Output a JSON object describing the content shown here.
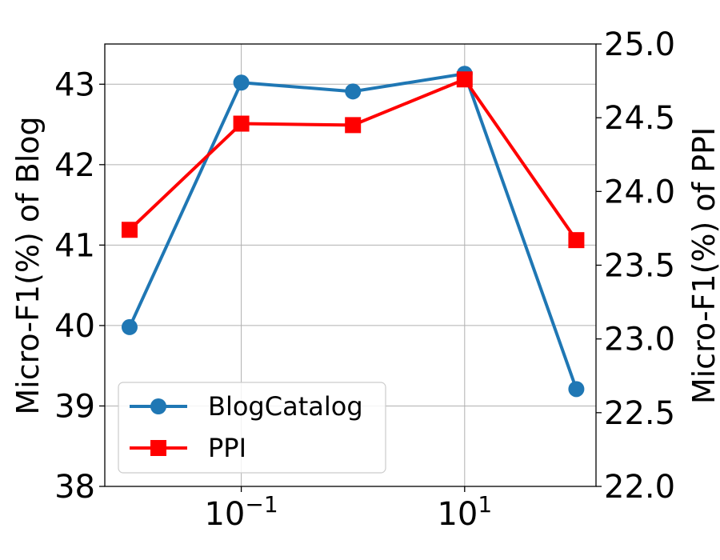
{
  "chart_data": {
    "type": "line",
    "x_scale": "log",
    "x": [
      0.01,
      0.1,
      1,
      10,
      100
    ],
    "x_ticks": [
      {
        "value": 0.1,
        "base": "10",
        "exp": "−1"
      },
      {
        "value": 10,
        "base": "10",
        "exp": "1"
      }
    ],
    "y_left": {
      "label": "Micro-F1(%) of Blog",
      "lim": [
        38,
        43.5
      ],
      "ticks": [
        "38",
        "39",
        "40",
        "41",
        "42",
        "43"
      ],
      "tick_values": [
        38,
        39,
        40,
        41,
        42,
        43
      ]
    },
    "y_right": {
      "label": "Micro-F1(%) of PPI",
      "lim": [
        22.0,
        25.0
      ],
      "ticks": [
        "22.0",
        "22.5",
        "23.0",
        "23.5",
        "24.0",
        "24.5",
        "25.0"
      ],
      "tick_values": [
        22.0,
        22.5,
        23.0,
        23.5,
        24.0,
        24.5,
        25.0
      ]
    },
    "grid": true,
    "legend_position": "lower-left",
    "series": [
      {
        "name": "BlogCatalog",
        "axis": "left",
        "color": "#1f77b4",
        "marker": "circle",
        "values": [
          39.98,
          43.02,
          42.91,
          43.13,
          39.21
        ]
      },
      {
        "name": "PPI",
        "axis": "right",
        "color": "#ff0000",
        "marker": "square",
        "values": [
          23.74,
          24.46,
          24.45,
          24.76,
          23.67
        ]
      }
    ]
  }
}
